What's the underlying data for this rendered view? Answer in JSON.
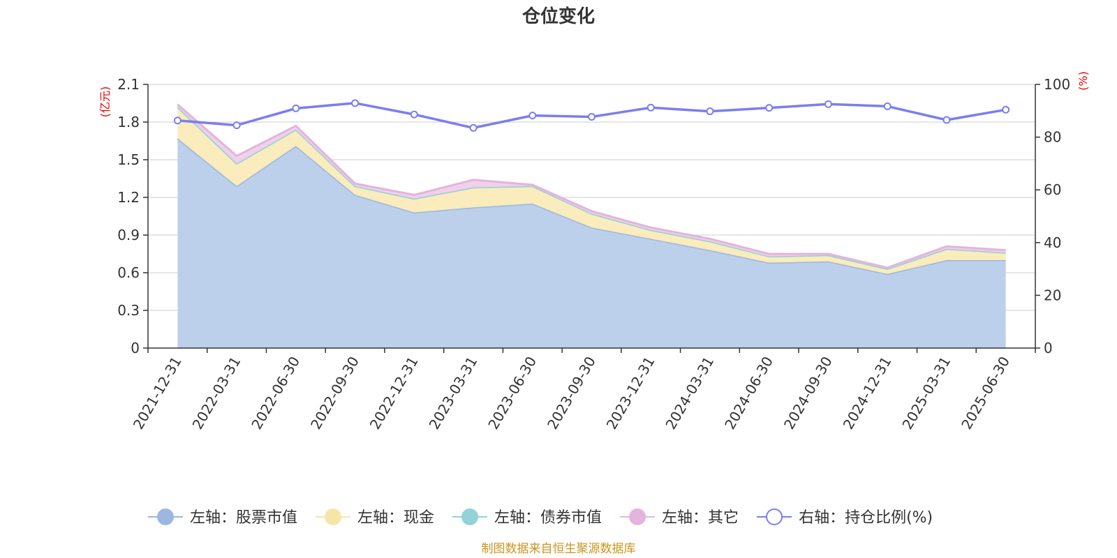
{
  "chart_data": {
    "type": "area",
    "title": "仓位变化",
    "x": [
      "2021-12-31",
      "2022-03-31",
      "2022-06-30",
      "2022-09-30",
      "2022-12-31",
      "2023-03-31",
      "2023-06-30",
      "2023-09-30",
      "2023-12-31",
      "2024-03-31",
      "2024-06-30",
      "2024-09-30",
      "2024-12-31",
      "2025-03-31",
      "2025-06-30"
    ],
    "left_axis": {
      "unit": "(亿元)",
      "ylim": [
        0,
        2.1
      ],
      "ticks": [
        "0",
        "0.3",
        "0.6",
        "0.9",
        "1.2",
        "1.5",
        "1.8",
        "2.1"
      ]
    },
    "right_axis": {
      "unit": "(%)",
      "ylim": [
        0,
        100
      ],
      "ticks": [
        "0",
        "20",
        "40",
        "60",
        "80",
        "100"
      ]
    },
    "grid": true,
    "legend_position": "bottom",
    "series": [
      {
        "name": "左轴：股票市值",
        "axis": "left",
        "kind": "stacked-area",
        "color": "#9bb8e0",
        "fill": "#b8cdea",
        "values": [
          1.67,
          1.29,
          1.61,
          1.22,
          1.08,
          1.12,
          1.15,
          0.96,
          0.87,
          0.78,
          0.68,
          0.69,
          0.59,
          0.7,
          0.7
        ]
      },
      {
        "name": "左轴：现金",
        "axis": "left",
        "kind": "stacked-area",
        "color": "#f7e5a8",
        "fill": "#faebb8",
        "values": [
          0.25,
          0.18,
          0.13,
          0.07,
          0.11,
          0.16,
          0.14,
          0.11,
          0.07,
          0.07,
          0.05,
          0.05,
          0.04,
          0.09,
          0.06
        ]
      },
      {
        "name": "左轴：债券市值",
        "axis": "left",
        "kind": "stacked-area",
        "color": "#93d2d6",
        "fill": "#a9dcde",
        "values": [
          0,
          0,
          0,
          0,
          0,
          0,
          0,
          0,
          0,
          0,
          0,
          0,
          0,
          0,
          0
        ]
      },
      {
        "name": "左轴：其它",
        "axis": "left",
        "kind": "stacked-area",
        "color": "#e3b4dc",
        "fill": "#f0cfe9",
        "values": [
          0.02,
          0.06,
          0.03,
          0.02,
          0.03,
          0.06,
          0.01,
          0.02,
          0.02,
          0.02,
          0.02,
          0.01,
          0.01,
          0.02,
          0.02
        ]
      },
      {
        "name": "右轴：持仓比例(%)",
        "axis": "right",
        "kind": "line",
        "color": "#7a7ef0",
        "values": [
          86.3,
          84.5,
          90.9,
          92.9,
          88.6,
          83.5,
          88.2,
          87.7,
          91.2,
          89.8,
          91.1,
          92.5,
          91.7,
          86.5,
          90.4
        ]
      }
    ],
    "source": "制图数据来自恒生聚源数据库"
  }
}
